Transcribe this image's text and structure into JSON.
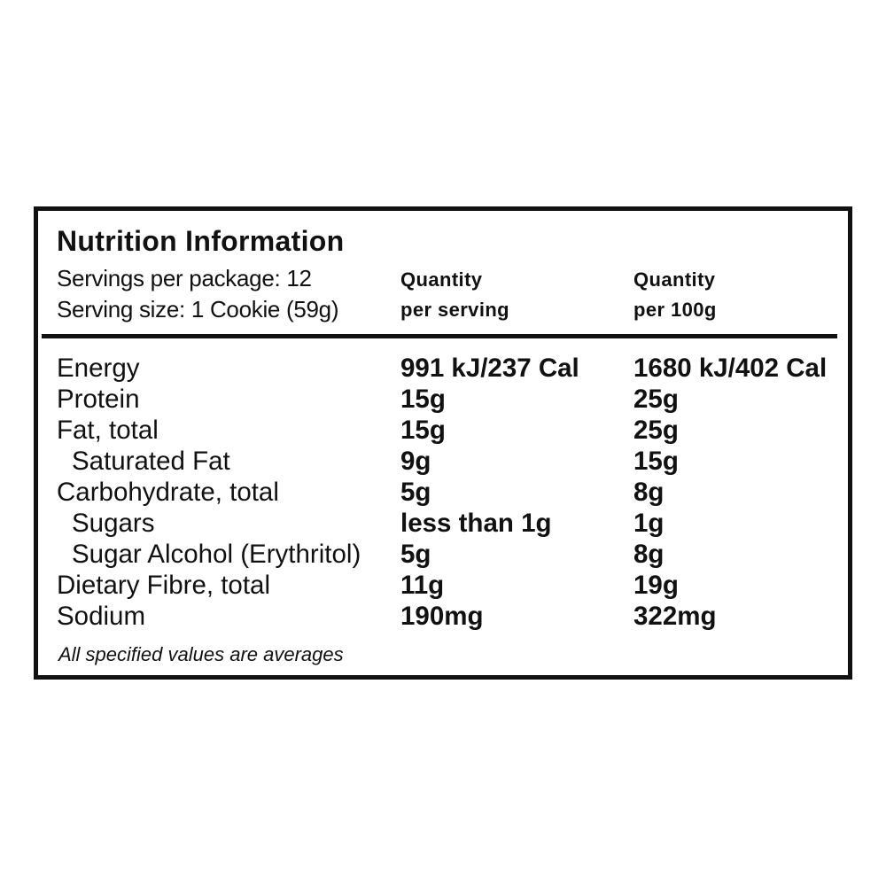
{
  "title": "Nutrition Information",
  "servings_per_package": "Servings per package: 12",
  "serving_size": "Serving size: 1 Cookie (59g)",
  "columns": [
    {
      "line1": "Quantity",
      "line2": "per serving"
    },
    {
      "line1": "Quantity",
      "line2": "per 100g"
    }
  ],
  "rows": [
    {
      "name": "Energy",
      "per_serving": "991 kJ/237 Cal",
      "per_100g": "1680 kJ/402 Cal",
      "indent": false
    },
    {
      "name": "Protein",
      "per_serving": "15g",
      "per_100g": "25g",
      "indent": false
    },
    {
      "name": "Fat, total",
      "per_serving": "15g",
      "per_100g": "25g",
      "indent": false
    },
    {
      "name": "Saturated Fat",
      "per_serving": "9g",
      "per_100g": "15g",
      "indent": true
    },
    {
      "name": "Carbohydrate, total",
      "per_serving": "5g",
      "per_100g": "8g",
      "indent": false
    },
    {
      "name": "Sugars",
      "per_serving": "less than 1g",
      "per_100g": "1g",
      "indent": true
    },
    {
      "name": "Sugar Alcohol (Erythritol)",
      "per_serving": "5g",
      "per_100g": "8g",
      "indent": true
    },
    {
      "name": "Dietary Fibre, total",
      "per_serving": "11g",
      "per_100g": "19g",
      "indent": false
    },
    {
      "name": "Sodium",
      "per_serving": "190mg",
      "per_100g": "322mg",
      "indent": false
    }
  ],
  "footnote": "All specified values are averages"
}
